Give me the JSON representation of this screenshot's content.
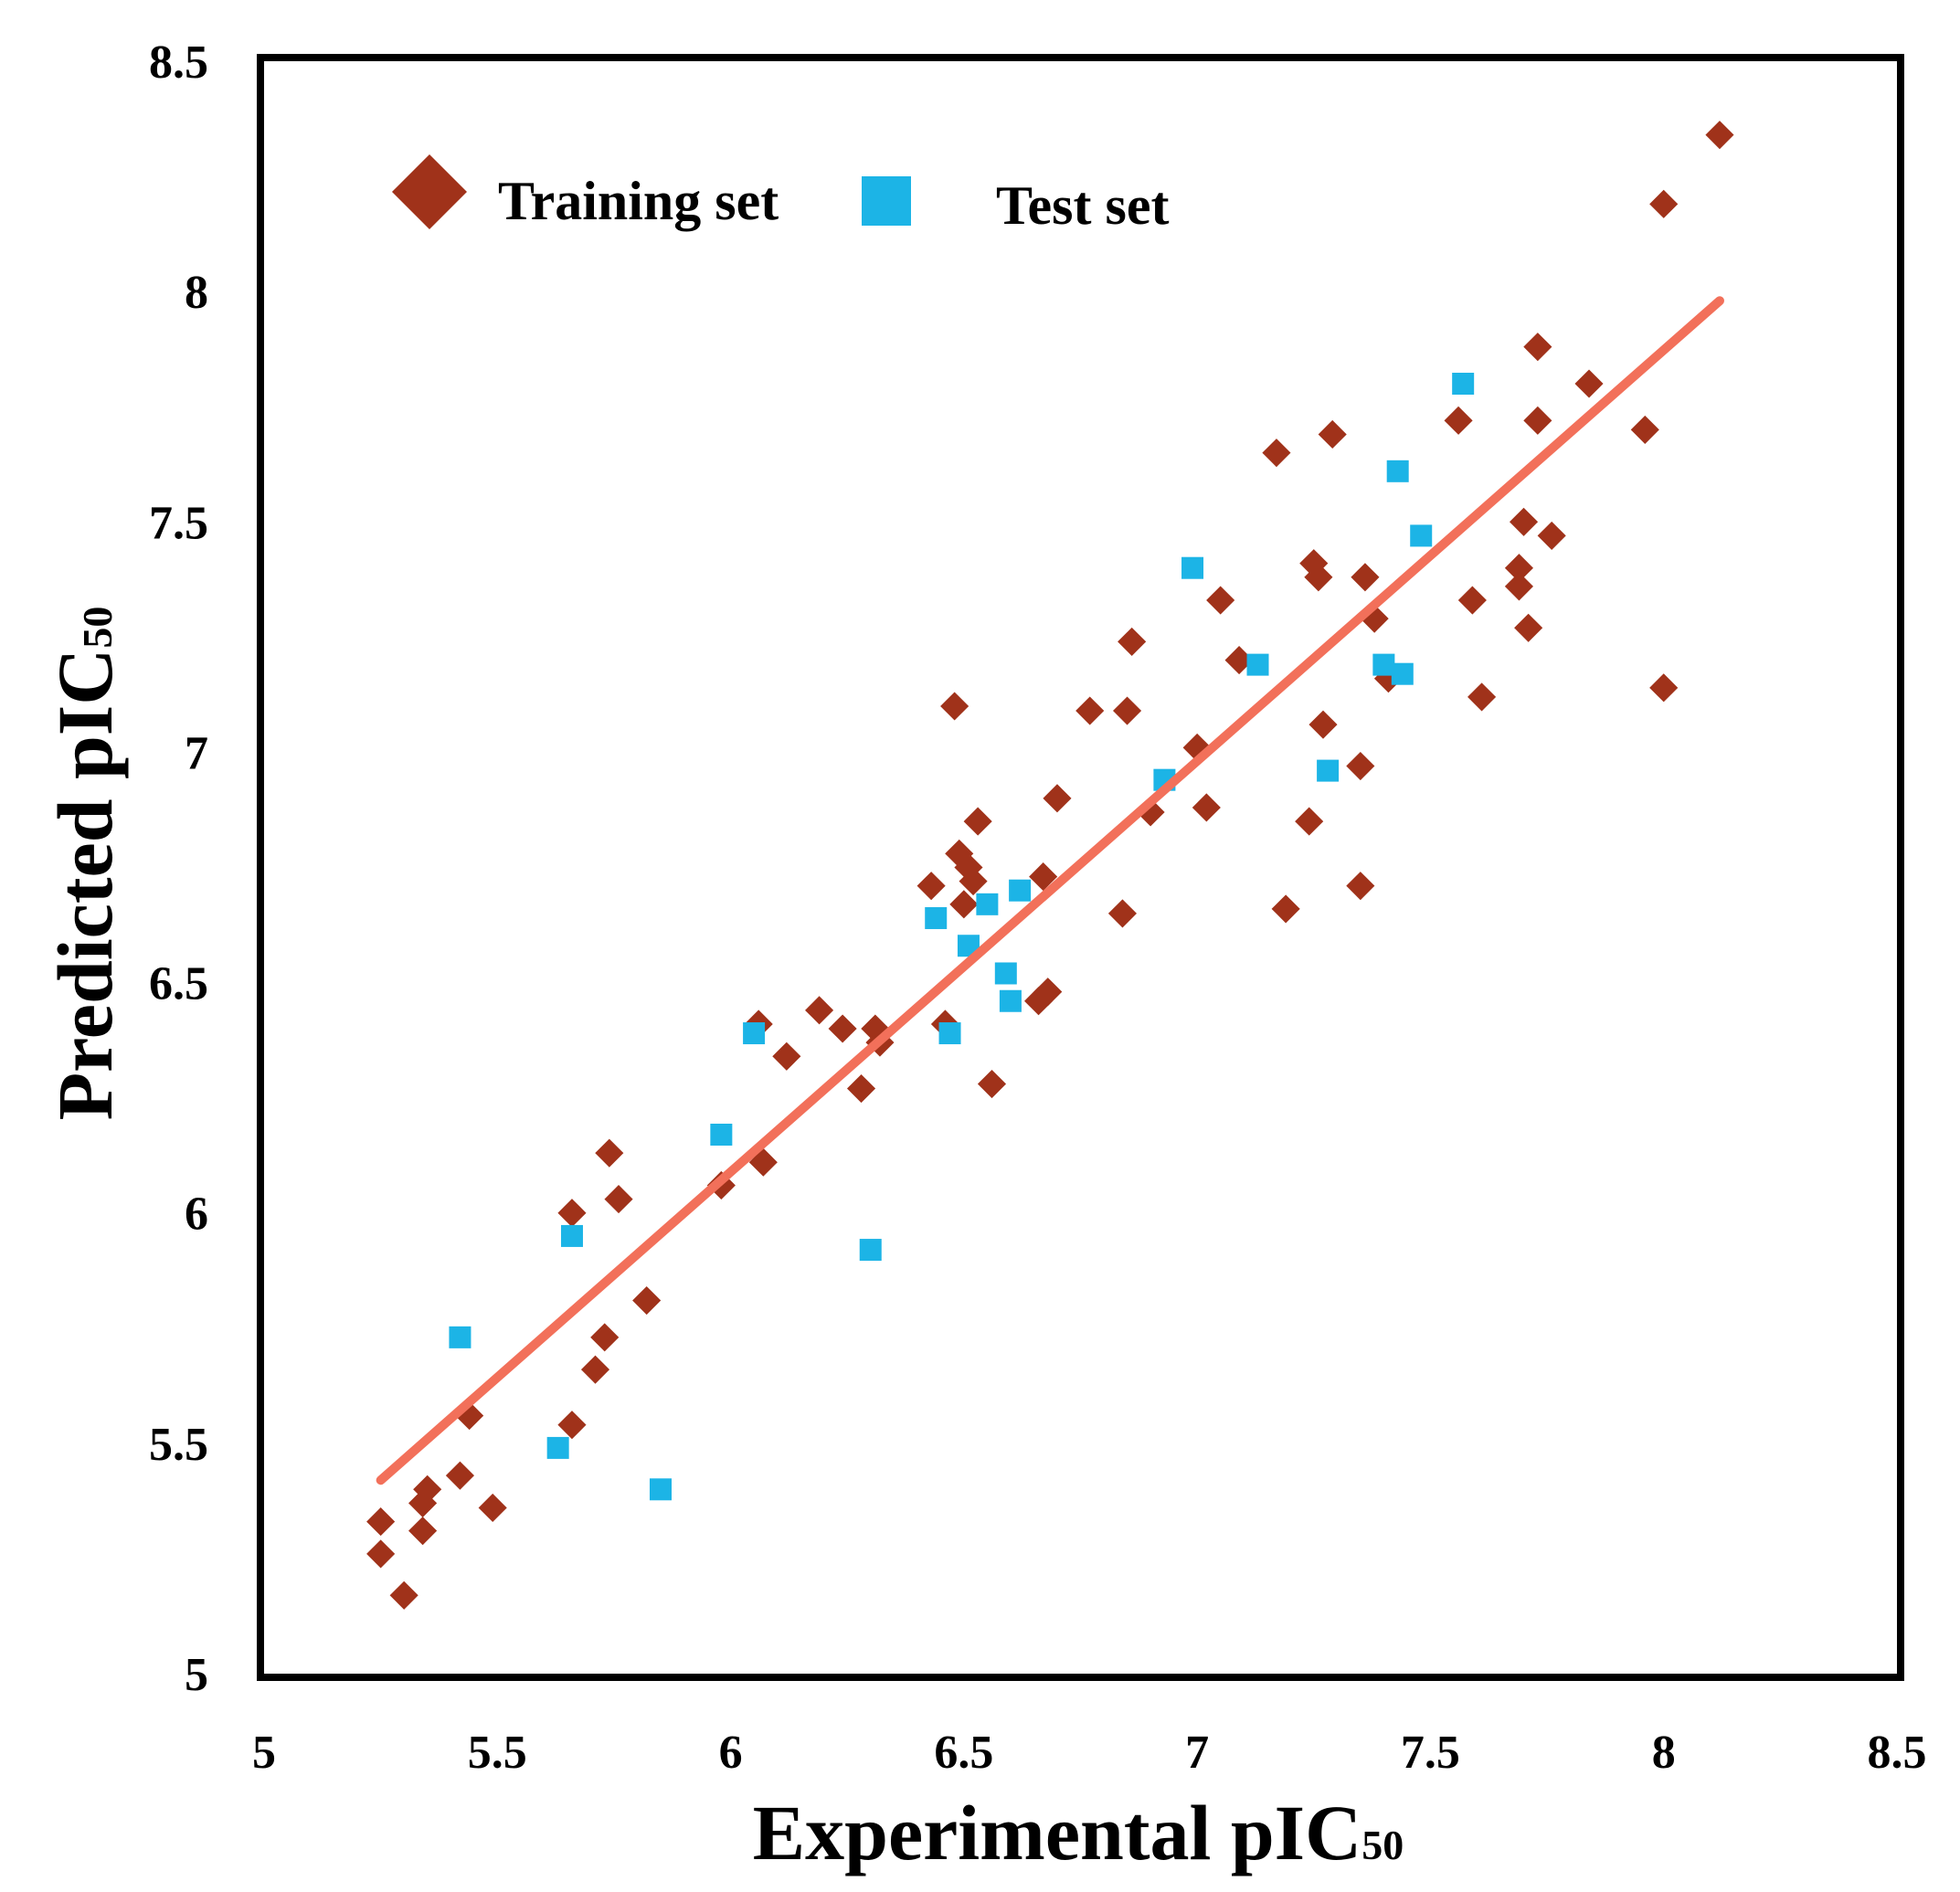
{
  "chart_data": {
    "type": "scatter",
    "title": "",
    "xlabel": "Experimental pIC",
    "xlabel_sub": "50",
    "ylabel": "Predicted pIC",
    "ylabel_sub": "50",
    "xlim": [
      5,
      8.5
    ],
    "ylim": [
      5,
      8.5
    ],
    "x_ticks": [
      "5",
      "5.5",
      "6",
      "6.5",
      "7",
      "7.5",
      "8",
      "8.5"
    ],
    "y_ticks": [
      "5",
      "5.5",
      "6",
      "6.5",
      "7",
      "7.5",
      "8",
      "8.5"
    ],
    "grid": false,
    "legend_position": "top-left",
    "colors": {
      "training": "#A0321A",
      "test": "#1CB4E6",
      "fit_line": "#F2705A",
      "frame": "#000000"
    },
    "fit_line": {
      "x": [
        5.25,
        8.12
      ],
      "y": [
        5.42,
        7.98
      ]
    },
    "series": [
      {
        "name": "Training set",
        "marker": "diamond",
        "points": [
          [
            5.25,
            5.33
          ],
          [
            5.25,
            5.26
          ],
          [
            5.3,
            5.17
          ],
          [
            5.34,
            5.31
          ],
          [
            5.34,
            5.37
          ],
          [
            5.35,
            5.4
          ],
          [
            5.42,
            5.43
          ],
          [
            5.44,
            5.56
          ],
          [
            5.49,
            5.36
          ],
          [
            5.66,
            5.54
          ],
          [
            5.66,
            6.0
          ],
          [
            5.71,
            5.66
          ],
          [
            5.73,
            5.73
          ],
          [
            5.74,
            6.13
          ],
          [
            5.76,
            6.03
          ],
          [
            5.82,
            5.81
          ],
          [
            5.98,
            6.06
          ],
          [
            6.06,
            6.41
          ],
          [
            6.07,
            6.11
          ],
          [
            6.12,
            6.34
          ],
          [
            6.19,
            6.44
          ],
          [
            6.24,
            6.4
          ],
          [
            6.28,
            6.27
          ],
          [
            6.31,
            6.4
          ],
          [
            6.32,
            6.37
          ],
          [
            6.43,
            6.71
          ],
          [
            6.46,
            6.41
          ],
          [
            6.48,
            7.1
          ],
          [
            6.49,
            6.78
          ],
          [
            6.5,
            6.67
          ],
          [
            6.51,
            6.75
          ],
          [
            6.52,
            6.72
          ],
          [
            6.53,
            6.85
          ],
          [
            6.56,
            6.28
          ],
          [
            6.66,
            6.46
          ],
          [
            6.67,
            6.73
          ],
          [
            6.68,
            6.48
          ],
          [
            6.7,
            6.9
          ],
          [
            6.77,
            7.09
          ],
          [
            6.84,
            6.65
          ],
          [
            6.85,
            7.09
          ],
          [
            6.86,
            7.24
          ],
          [
            6.9,
            6.87
          ],
          [
            7.0,
            7.01
          ],
          [
            7.02,
            6.88
          ],
          [
            7.05,
            7.33
          ],
          [
            7.09,
            7.2
          ],
          [
            7.17,
            7.65
          ],
          [
            7.19,
            6.66
          ],
          [
            7.24,
            6.85
          ],
          [
            7.25,
            7.41
          ],
          [
            7.26,
            7.38
          ],
          [
            7.27,
            7.06
          ],
          [
            7.29,
            7.69
          ],
          [
            7.35,
            6.97
          ],
          [
            7.35,
            6.71
          ],
          [
            7.36,
            7.38
          ],
          [
            7.38,
            7.29
          ],
          [
            7.41,
            7.16
          ],
          [
            7.56,
            7.72
          ],
          [
            7.59,
            7.33
          ],
          [
            7.61,
            7.12
          ],
          [
            7.69,
            7.4
          ],
          [
            7.69,
            7.36
          ],
          [
            7.7,
            7.5
          ],
          [
            7.71,
            7.27
          ],
          [
            7.73,
            7.88
          ],
          [
            7.73,
            7.72
          ],
          [
            7.76,
            7.47
          ],
          [
            7.84,
            7.8
          ],
          [
            7.96,
            7.7
          ],
          [
            8.0,
            7.14
          ],
          [
            8.0,
            8.19
          ],
          [
            8.12,
            8.34
          ]
        ]
      },
      {
        "name": "Test set",
        "marker": "square",
        "points": [
          [
            5.42,
            5.73
          ],
          [
            5.63,
            5.49
          ],
          [
            5.66,
            5.95
          ],
          [
            5.85,
            5.4
          ],
          [
            5.98,
            6.17
          ],
          [
            6.05,
            6.39
          ],
          [
            6.3,
            5.92
          ],
          [
            6.44,
            6.64
          ],
          [
            6.47,
            6.39
          ],
          [
            6.51,
            6.58
          ],
          [
            6.55,
            6.67
          ],
          [
            6.59,
            6.52
          ],
          [
            6.6,
            6.46
          ],
          [
            6.62,
            6.7
          ],
          [
            6.93,
            6.94
          ],
          [
            6.99,
            7.4
          ],
          [
            7.13,
            7.19
          ],
          [
            7.28,
            6.96
          ],
          [
            7.4,
            7.19
          ],
          [
            7.43,
            7.61
          ],
          [
            7.44,
            7.17
          ],
          [
            7.48,
            7.47
          ],
          [
            7.57,
            7.8
          ]
        ]
      }
    ]
  }
}
